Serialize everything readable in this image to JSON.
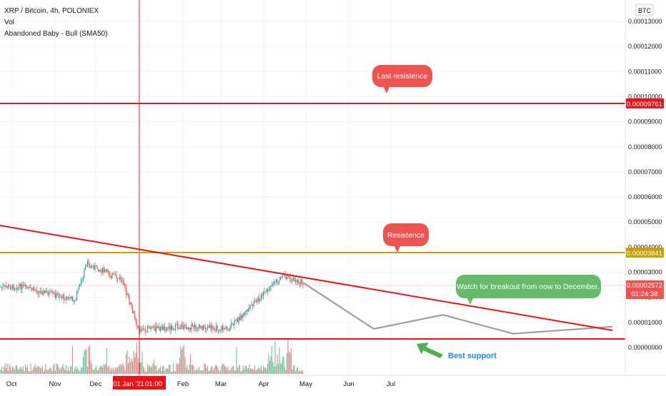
{
  "header": {
    "symbol_line": "XRP / Bitcoin, 4h, POLONIEX",
    "vol_label": "Vol",
    "indicator_label": "Abandoned Baby - Bull (SMA50)"
  },
  "currency_label": "BTC",
  "price_axis": {
    "ticks": [
      "0.00013000",
      "0.00012000",
      "0.00011000",
      "0.00010000",
      "0.00009000",
      "0.00008000",
      "0.00007000",
      "0.00006000",
      "0.00005000",
      "0.00004000",
      "0.00003000",
      "0.00002000",
      "0.00001000",
      "0.00000000"
    ]
  },
  "price_badges": {
    "last_resistance": "0.00009761",
    "resistance": "0.00003841",
    "current_price": "0.00002572",
    "countdown": "01:24:38"
  },
  "time_axis": {
    "labels": [
      "Oct",
      "Nov",
      "Dec",
      "Feb",
      "Mar",
      "Apr",
      "May",
      "Jun",
      "Jul"
    ],
    "crosshair_date": "01 Jan '21",
    "crosshair_time": "01:00"
  },
  "annotations": {
    "last_resistance": "Last resistence",
    "resistance": "Resistence",
    "watch": "Watch for breakout from now to December.",
    "best_support": "Best support"
  },
  "colors": {
    "red_line": "#e8141a",
    "gold_line": "#c9a000",
    "bubble_red": "#ef5350",
    "bubble_green": "#66bb6a",
    "candle_up": "#26a69a",
    "candle_down": "#ef5350",
    "projection": "#9e9e9e",
    "support_text": "#1e88e5"
  },
  "chart_data": {
    "type": "candlestick",
    "pair": "XRP / Bitcoin",
    "interval": "4h",
    "exchange": "POLONIEX",
    "unit": "BTC",
    "ylim": [
      0.0,
      0.00013
    ],
    "price_path": [
      {
        "x": "Sep",
        "y": 2.39e-05
      },
      {
        "x": "Oct",
        "y": 2.42e-05
      },
      {
        "x": "Nov",
        "y": 1.9e-05
      },
      {
        "x": "Dec",
        "y": 3.35e-05
      },
      {
        "x": "Dec",
        "y": 2.7e-05
      },
      {
        "x": "Jan",
        "y": 7e-06
      },
      {
        "x": "Feb",
        "y": 8.3e-06
      },
      {
        "x": "Mar",
        "y": 7.5e-06
      },
      {
        "x": "Apr",
        "y": 2.85e-05
      },
      {
        "x": "Apr",
        "y": 2.57e-05
      }
    ],
    "projection_path": [
      {
        "x": "Apr",
        "y": 2.57e-05
      },
      {
        "x": "Jun",
        "y": 7.4e-06
      },
      {
        "x": "Jul",
        "y": 1.3e-05
      },
      {
        "x": "Sep",
        "y": 5.5e-06
      },
      {
        "x": "Dec",
        "y": 8.3e-06
      }
    ],
    "horizontal_levels": [
      {
        "label": "Last resistence",
        "value": 9.761e-05
      },
      {
        "label": "Resistence",
        "value": 3.841e-05
      },
      {
        "label": "Best support",
        "value": 4.3e-06
      }
    ],
    "last_price": 2.572e-05
  }
}
